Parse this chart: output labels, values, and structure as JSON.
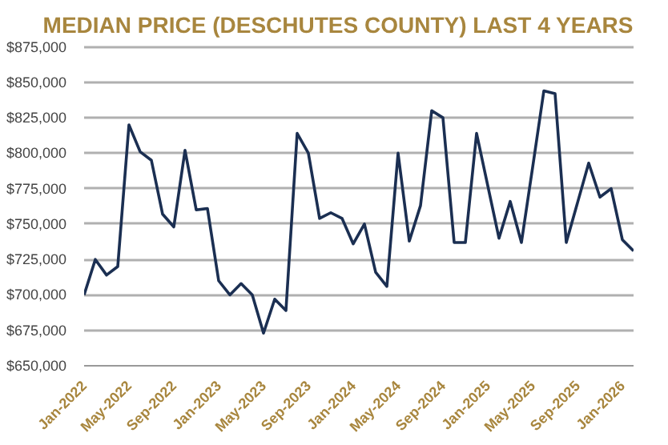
{
  "chart_data": {
    "type": "line",
    "title": "MEDIAN PRICE (DESCHUTES COUNTY) LAST 4 YEARS",
    "x": [
      "2022-01",
      "2022-02",
      "2022-03",
      "2022-04",
      "2022-05",
      "2022-06",
      "2022-07",
      "2022-08",
      "2022-09",
      "2022-10",
      "2022-11",
      "2022-12",
      "2023-01",
      "2023-02",
      "2023-03",
      "2023-04",
      "2023-05",
      "2023-06",
      "2023-07",
      "2023-08",
      "2023-09",
      "2023-10",
      "2023-11",
      "2023-12",
      "2024-01",
      "2024-02",
      "2024-03",
      "2024-04",
      "2024-05",
      "2024-06",
      "2024-07",
      "2024-08",
      "2024-09",
      "2024-10",
      "2024-11",
      "2024-12",
      "2025-01",
      "2025-02",
      "2025-03",
      "2025-04",
      "2025-05",
      "2025-06",
      "2025-07",
      "2025-08",
      "2025-09",
      "2025-10",
      "2025-11",
      "2025-12",
      "2026-01",
      "2026-02"
    ],
    "series": [
      {
        "color": "#1b2f52",
        "values": [
          700000,
          725000,
          714000,
          720000,
          820000,
          801000,
          795000,
          757000,
          748000,
          802000,
          760000,
          761000,
          710000,
          700000,
          708000,
          700000,
          673000,
          697000,
          689000,
          814000,
          800000,
          754000,
          758000,
          754000,
          736000,
          750000,
          716000,
          706000,
          800000,
          738000,
          763000,
          830000,
          825000,
          737000,
          737000,
          814000,
          777000,
          740000,
          766000,
          737000,
          790000,
          844000,
          842000,
          737000,
          765000,
          793000,
          769000,
          775000,
          739000,
          731000
        ]
      }
    ],
    "xlim": [
      "2022-01",
      "2026-02"
    ],
    "xticks": [
      {
        "value": "2022-01",
        "label": "Jan-2022"
      },
      {
        "value": "2022-05",
        "label": "May-2022"
      },
      {
        "value": "2022-09",
        "label": "Sep-2022"
      },
      {
        "value": "2023-01",
        "label": "Jan-2023"
      },
      {
        "value": "2023-05",
        "label": "May-2023"
      },
      {
        "value": "2023-09",
        "label": "Sep-2023"
      },
      {
        "value": "2024-01",
        "label": "Jan-2024"
      },
      {
        "value": "2024-05",
        "label": "May-2024"
      },
      {
        "value": "2024-09",
        "label": "Sep-2024"
      },
      {
        "value": "2025-01",
        "label": "Jan-2025"
      },
      {
        "value": "2025-05",
        "label": "May-2025"
      },
      {
        "value": "2025-09",
        "label": "Sep-2025"
      },
      {
        "value": "2026-01",
        "label": "Jan-2026"
      }
    ],
    "ylim": [
      650000,
      875000
    ],
    "yticks": [
      {
        "value": 650000,
        "label": "$650,000"
      },
      {
        "value": 675000,
        "label": "$675,000"
      },
      {
        "value": 700000,
        "label": "$700,000"
      },
      {
        "value": 725000,
        "label": "$725,000"
      },
      {
        "value": 750000,
        "label": "$750,000"
      },
      {
        "value": 775000,
        "label": "$775,000"
      },
      {
        "value": 800000,
        "label": "$800,000"
      },
      {
        "value": 825000,
        "label": "$825,000"
      },
      {
        "value": 850000,
        "label": "$850,000"
      },
      {
        "value": 875000,
        "label": "$875,000"
      }
    ],
    "grid": "y",
    "marker": "none",
    "line_style": "solid"
  }
}
